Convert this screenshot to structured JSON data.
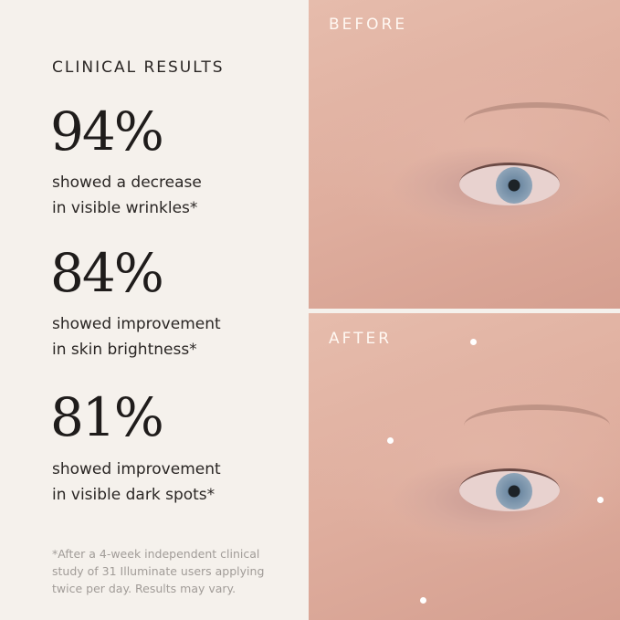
{
  "heading": "CLINICAL RESULTS",
  "results": [
    {
      "value": "94%",
      "description": "showed a decrease\nin visible wrinkles*"
    },
    {
      "value": "84%",
      "description": "showed improvement\nin skin brightness*"
    },
    {
      "value": "81%",
      "description": "showed improvement\nin visible dark spots*"
    }
  ],
  "footnote": "*After a 4-week independent clinical\nstudy of 31 Illuminate users applying\ntwice per day. Results may vary.",
  "photos": {
    "before_label": "BEFORE",
    "after_label": "AFTER"
  }
}
